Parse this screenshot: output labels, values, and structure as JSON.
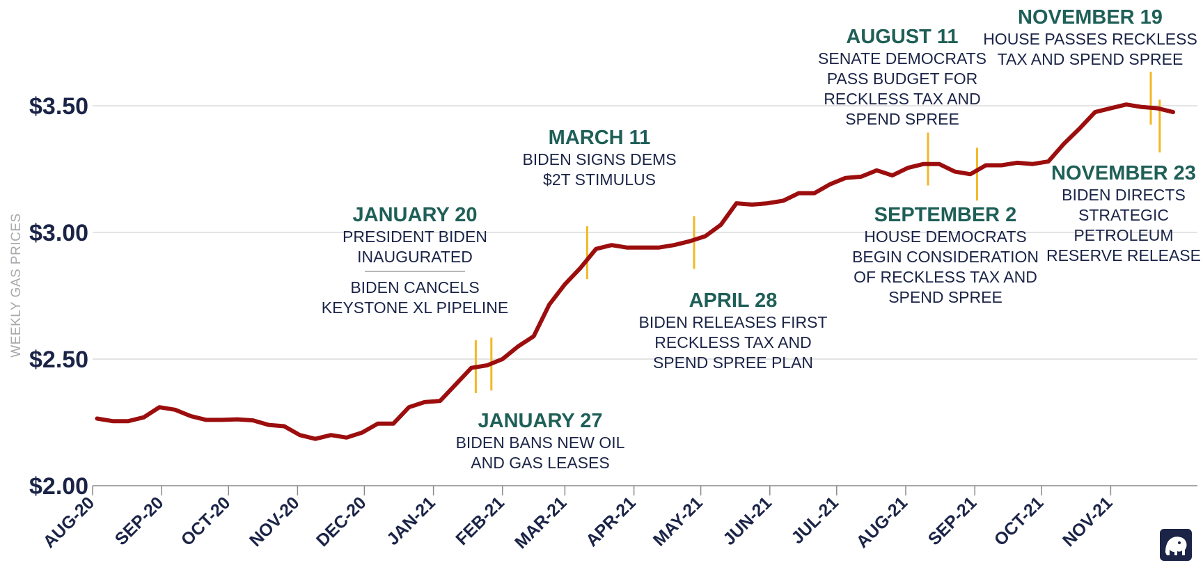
{
  "chart_data": {
    "type": "line",
    "ylabel": "WEEKLY GAS PRICES",
    "ylim": [
      2.0,
      3.75
    ],
    "yticks": [
      {
        "value": 2.0,
        "label": "$2.00"
      },
      {
        "value": 2.5,
        "label": "$2.50"
      },
      {
        "value": 3.0,
        "label": "$3.00"
      },
      {
        "value": 3.5,
        "label": "$3.50"
      }
    ],
    "x_tick_labels": [
      "AUG-20",
      "SEP-20",
      "OCT-20",
      "NOV-20",
      "DEC-20",
      "JAN-21",
      "FEB-21",
      "MAR-21",
      "APR-21",
      "MAY-21",
      "JUN-21",
      "JUL-21",
      "AUG-21",
      "SEP-21",
      "OCT-21",
      "NOV-21"
    ],
    "x_start": "2020-08-01",
    "grid": true,
    "line_color": "#9c0e0e",
    "marker_color": "#f2b824",
    "annotation_date_color": "#1e5f57",
    "text_color": "#1b2447",
    "series": [
      {
        "x": [
          "2020-08-03",
          "2020-08-10",
          "2020-08-17",
          "2020-08-24",
          "2020-08-31",
          "2020-09-07",
          "2020-09-14",
          "2020-09-21",
          "2020-09-28",
          "2020-10-05",
          "2020-10-12",
          "2020-10-19",
          "2020-10-26",
          "2020-11-02",
          "2020-11-09",
          "2020-11-16",
          "2020-11-23",
          "2020-11-30",
          "2020-12-07",
          "2020-12-14",
          "2020-12-21",
          "2020-12-28",
          "2021-01-04",
          "2021-01-11",
          "2021-01-18",
          "2021-01-25",
          "2021-02-01",
          "2021-02-08",
          "2021-02-15",
          "2021-02-22",
          "2021-03-01",
          "2021-03-08",
          "2021-03-15",
          "2021-03-22",
          "2021-03-29",
          "2021-04-05",
          "2021-04-12",
          "2021-04-19",
          "2021-04-26",
          "2021-05-03",
          "2021-05-10",
          "2021-05-17",
          "2021-05-24",
          "2021-05-31",
          "2021-06-07",
          "2021-06-14",
          "2021-06-21",
          "2021-06-28",
          "2021-07-05",
          "2021-07-12",
          "2021-07-19",
          "2021-07-26",
          "2021-08-02",
          "2021-08-09",
          "2021-08-16",
          "2021-08-23",
          "2021-08-30",
          "2021-09-06",
          "2021-09-13",
          "2021-09-20",
          "2021-09-27",
          "2021-10-04",
          "2021-10-11",
          "2021-10-18",
          "2021-10-25",
          "2021-11-01",
          "2021-11-08",
          "2021-11-15",
          "2021-11-22",
          "2021-11-29"
        ],
        "values": [
          2.265,
          2.255,
          2.255,
          2.27,
          2.31,
          2.3,
          2.275,
          2.26,
          2.26,
          2.262,
          2.258,
          2.24,
          2.235,
          2.2,
          2.185,
          2.2,
          2.19,
          2.21,
          2.245,
          2.245,
          2.31,
          2.33,
          2.335,
          2.4,
          2.465,
          2.475,
          2.5,
          2.55,
          2.59,
          2.715,
          2.795,
          2.86,
          2.935,
          2.95,
          2.94,
          2.94,
          2.94,
          2.95,
          2.965,
          2.985,
          3.03,
          3.115,
          3.11,
          3.115,
          3.125,
          3.155,
          3.155,
          3.19,
          3.215,
          3.22,
          3.245,
          3.225,
          3.255,
          3.27,
          3.27,
          3.24,
          3.23,
          3.265,
          3.265,
          3.275,
          3.27,
          3.28,
          3.35,
          3.41,
          3.475,
          3.49,
          3.505,
          3.495,
          3.49,
          3.475
        ]
      }
    ],
    "event_markers": [
      {
        "date": "2021-01-20",
        "value": 2.47
      },
      {
        "date": "2021-01-27",
        "value": 2.48
      },
      {
        "date": "2021-03-11",
        "value": 2.92
      },
      {
        "date": "2021-04-28",
        "value": 2.96
      },
      {
        "date": "2021-08-11",
        "value": 3.29
      },
      {
        "date": "2021-09-02",
        "value": 3.23
      },
      {
        "date": "2021-11-19",
        "value": 3.53
      },
      {
        "date": "2021-11-23",
        "value": 3.42
      }
    ],
    "annotations": [
      {
        "date_label": "JANUARY 20",
        "lines": [
          "PRESIDENT BIDEN",
          "INAUGURATED"
        ],
        "divider": true,
        "after_lines": [
          "BIDEN CANCELS",
          "KEYSTONE XL PIPELINE"
        ]
      },
      {
        "date_label": "JANUARY 27",
        "lines": [
          "BIDEN BANS NEW OIL",
          "AND GAS LEASES"
        ]
      },
      {
        "date_label": "MARCH 11",
        "lines": [
          "BIDEN SIGNS DEMS",
          "$2T STIMULUS"
        ]
      },
      {
        "date_label": "APRIL 28",
        "lines": [
          "BIDEN RELEASES FIRST",
          "RECKLESS TAX AND",
          "SPEND SPREE PLAN"
        ]
      },
      {
        "date_label": "AUGUST 11",
        "lines": [
          "SENATE DEMOCRATS",
          "PASS BUDGET FOR",
          "RECKLESS TAX AND",
          "SPEND SPREE"
        ]
      },
      {
        "date_label": "SEPTEMBER 2",
        "lines": [
          "HOUSE DEMOCRATS",
          "BEGIN CONSIDERATION",
          "OF RECKLESS TAX AND",
          "SPEND SPREE"
        ]
      },
      {
        "date_label": "NOVEMBER 19",
        "lines": [
          "HOUSE PASSES RECKLESS",
          "TAX AND SPEND SPREE"
        ]
      },
      {
        "date_label": "NOVEMBER 23",
        "lines": [
          "BIDEN DIRECTS",
          "STRATEGIC",
          "PETROLEUM",
          "RESERVE RELEASE"
        ]
      }
    ],
    "logo": "elephant-logo-icon"
  }
}
